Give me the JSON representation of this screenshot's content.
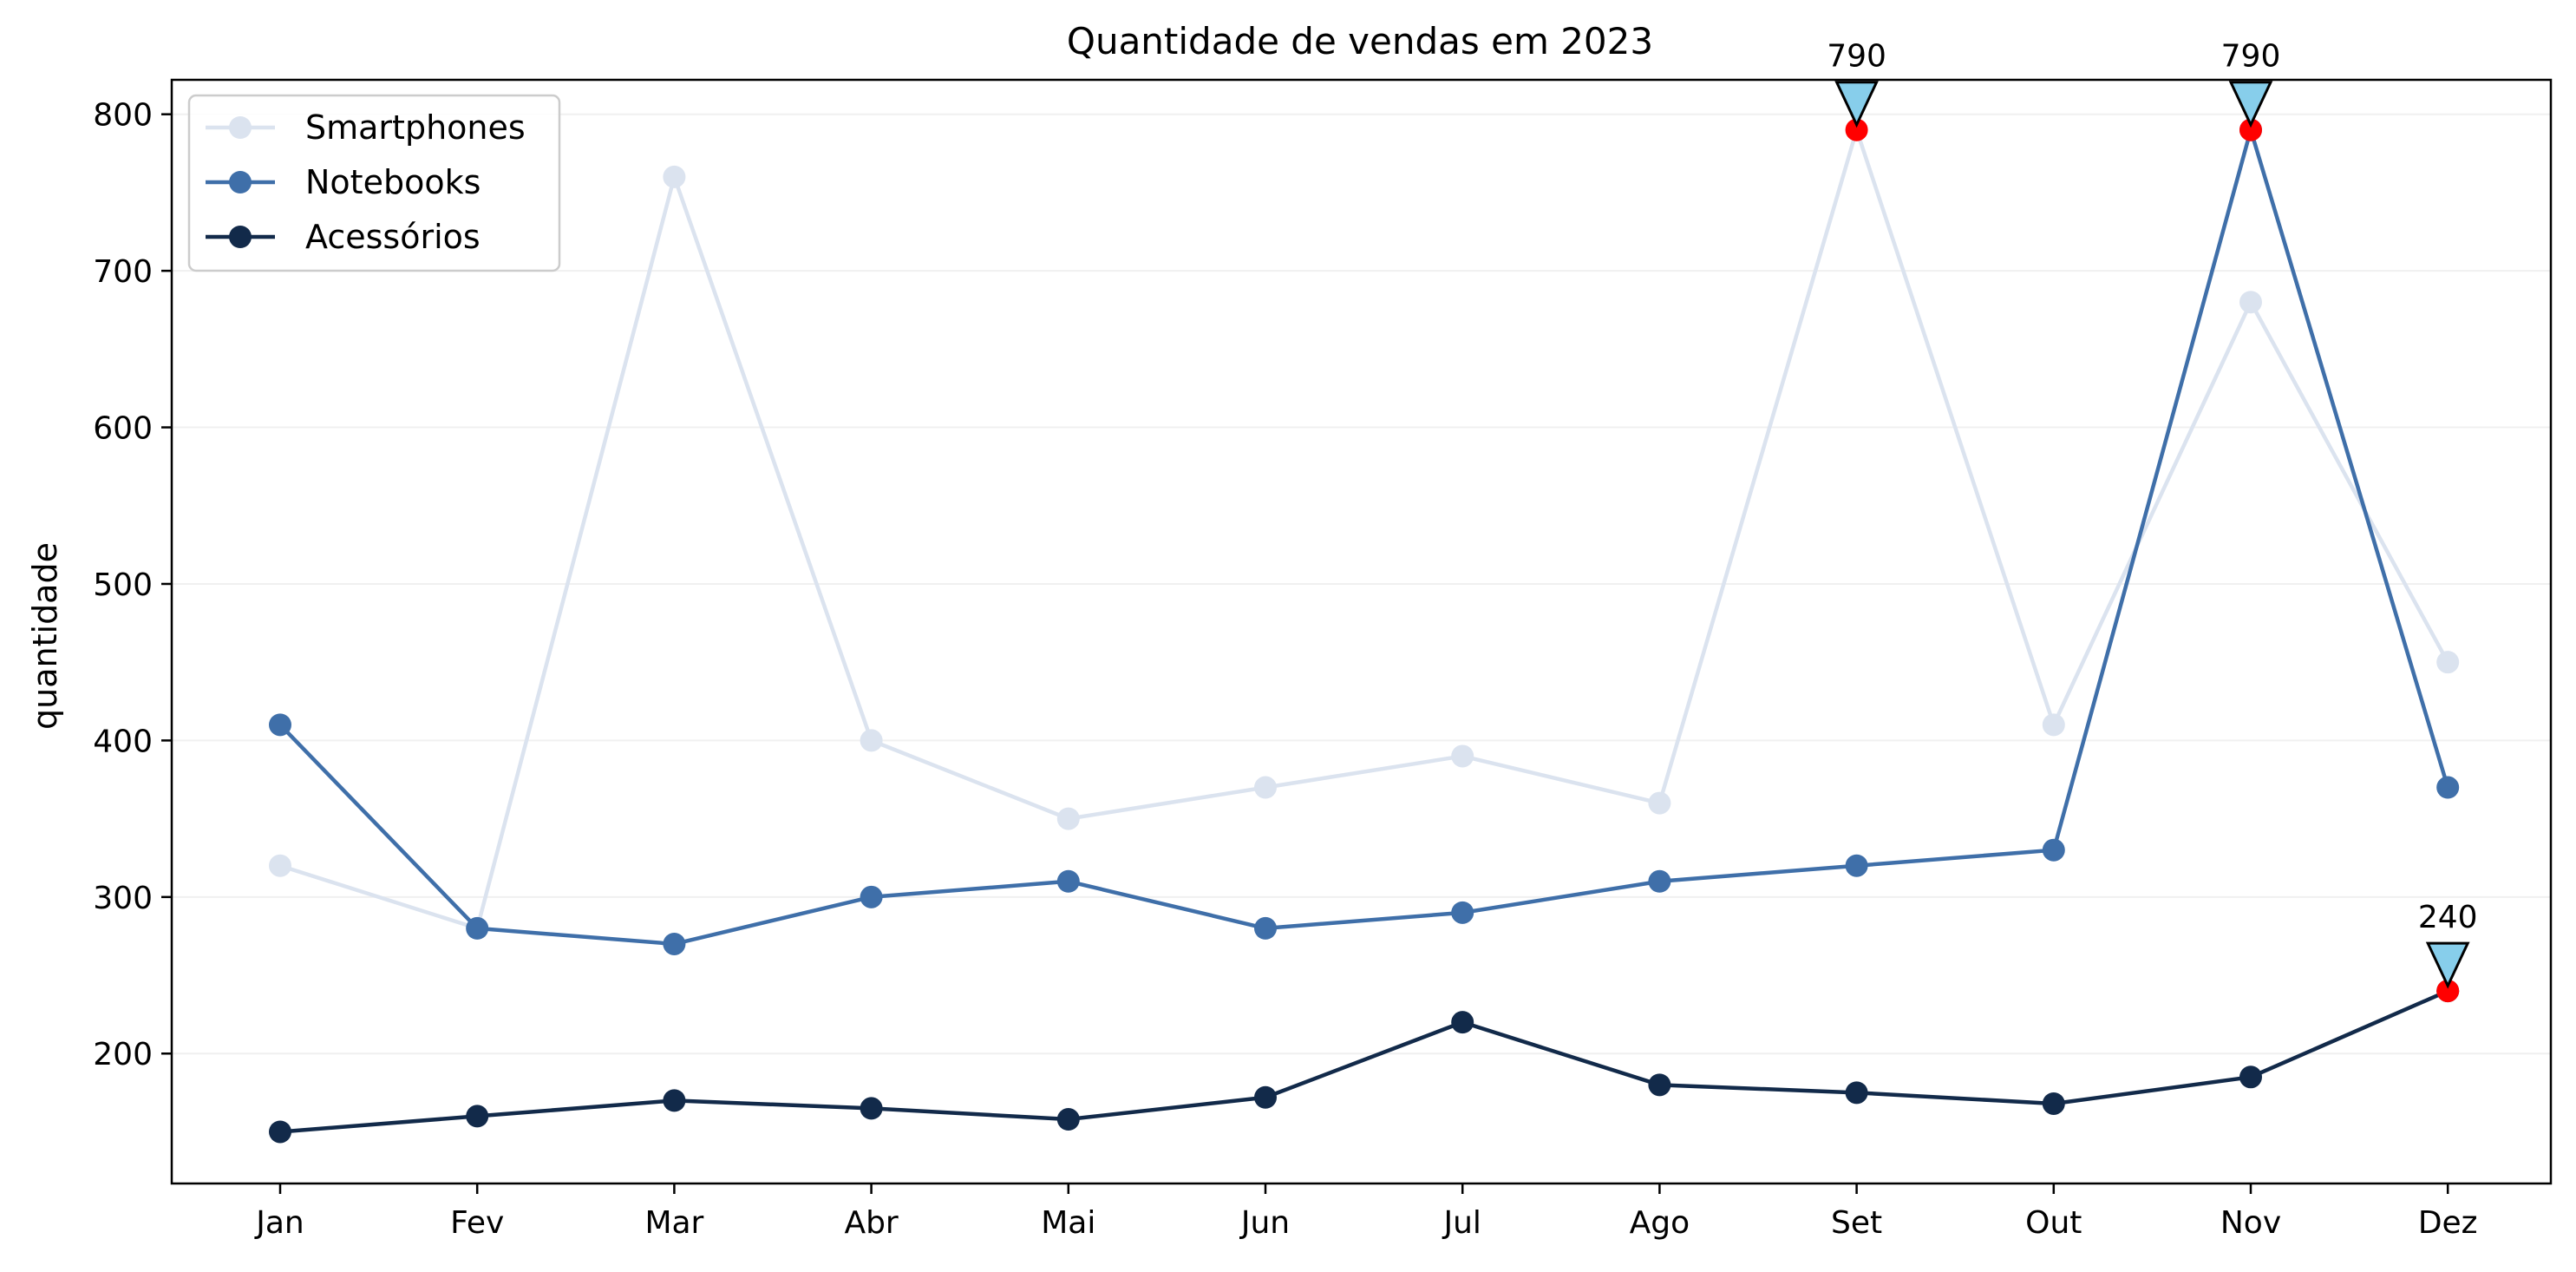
{
  "chart_data": {
    "type": "line",
    "title": "Quantidade de vendas em 2023",
    "xlabel": "",
    "ylabel": "quantidade",
    "categories": [
      "Jan",
      "Fev",
      "Mar",
      "Abr",
      "Mai",
      "Jun",
      "Jul",
      "Ago",
      "Set",
      "Out",
      "Nov",
      "Dez"
    ],
    "ylim": [
      117,
      822
    ],
    "yticks": [
      200,
      300,
      400,
      500,
      600,
      700,
      800
    ],
    "grid": "horizontal",
    "legend_position": "top-left",
    "series": [
      {
        "name": "Smartphones",
        "color": "#dbe3ef",
        "values": [
          320,
          280,
          760,
          400,
          350,
          370,
          390,
          360,
          790,
          410,
          680,
          450
        ]
      },
      {
        "name": "Notebooks",
        "color": "#3f6fa9",
        "values": [
          410,
          280,
          270,
          300,
          310,
          280,
          290,
          310,
          320,
          330,
          790,
          370
        ]
      },
      {
        "name": "Acessórios",
        "color": "#122a4a",
        "values": [
          150,
          160,
          170,
          165,
          158,
          172,
          220,
          180,
          175,
          168,
          185,
          240
        ]
      }
    ],
    "annotations": [
      {
        "category": "Set",
        "series": "Smartphones",
        "value": 790,
        "label": "790"
      },
      {
        "category": "Nov",
        "series": "Notebooks",
        "value": 790,
        "label": "790"
      },
      {
        "category": "Dez",
        "series": "Acessórios",
        "value": 240,
        "label": "240"
      }
    ],
    "highlight_color": "#ff0000",
    "marker_color": "#87ceeb"
  }
}
